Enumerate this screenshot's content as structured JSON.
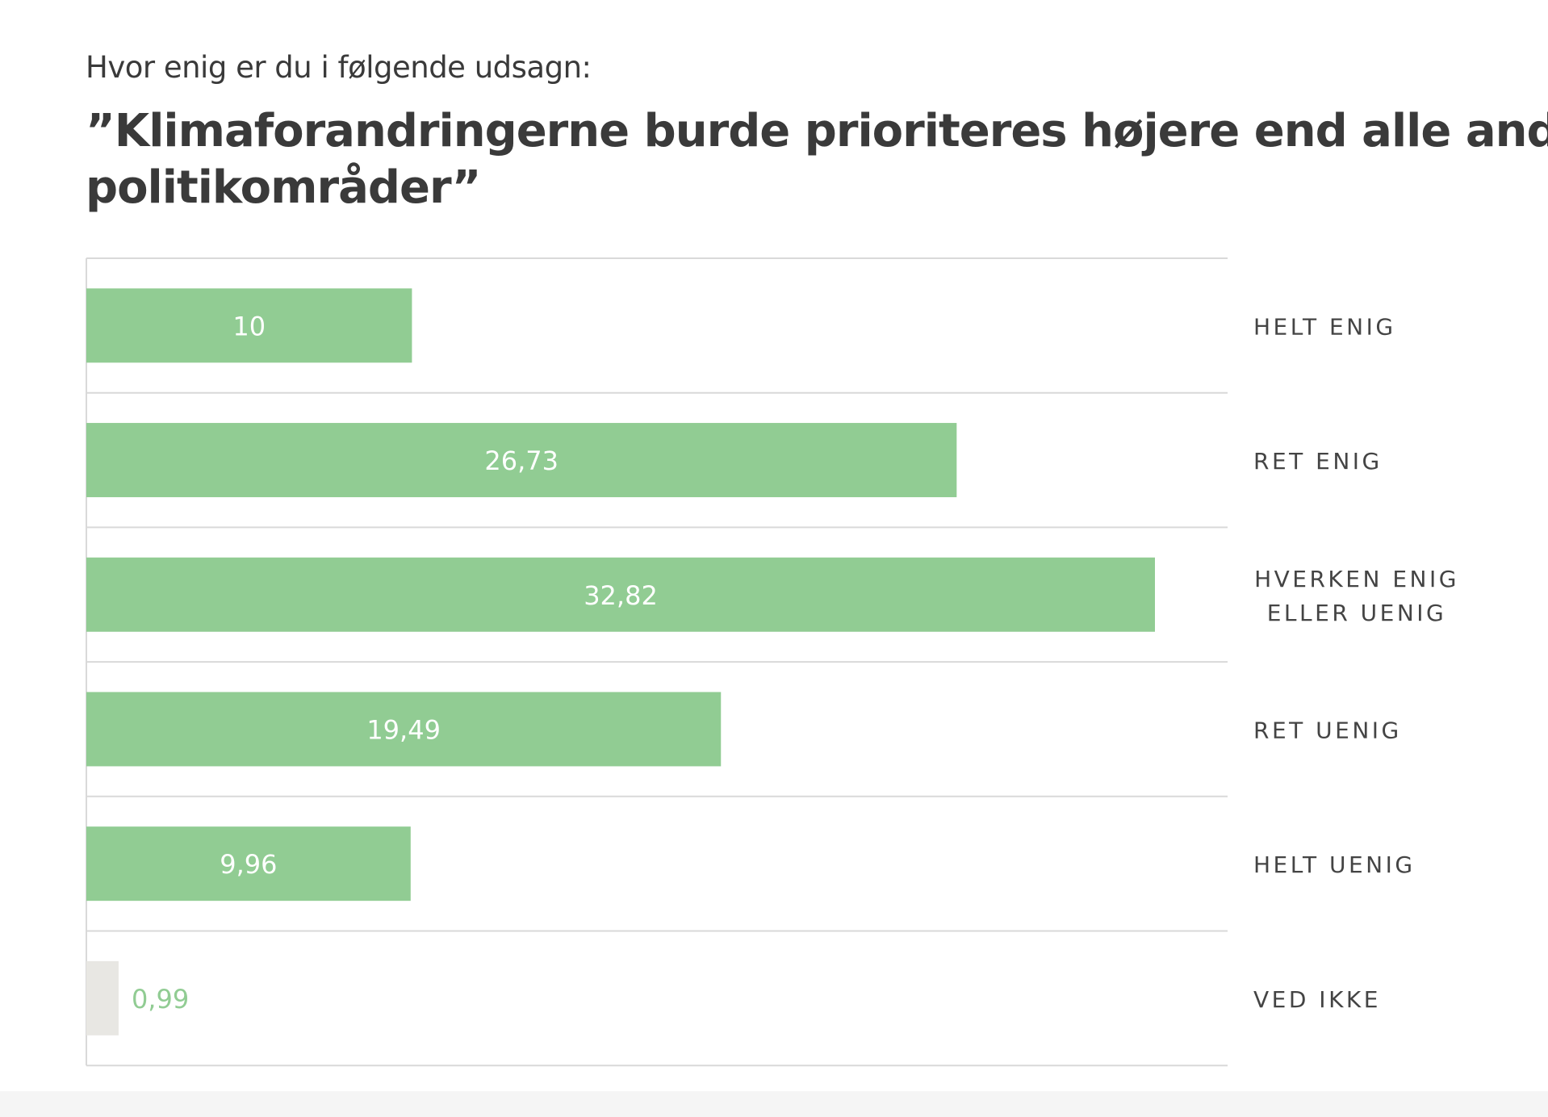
{
  "header": {
    "subtitle": "Hvor enig er du i følgende udsagn:",
    "title_line1": "”Klimaforandringerne burde prioriteres højere end alle andre",
    "title_line2": "politikområder”"
  },
  "chart_data": {
    "type": "bar",
    "orientation": "horizontal",
    "categories": [
      "HELT ENIG",
      "RET ENIG",
      "HVERKEN ENIG ELLER UENIG",
      "RET UENIG",
      "HELT UENIG",
      "VED IKKE"
    ],
    "category_lines": [
      [
        "HELT ENIG"
      ],
      [
        "RET ENIG"
      ],
      [
        "HVERKEN ENIG",
        "ELLER UENIG"
      ],
      [
        "RET UENIG"
      ],
      [
        "HELT UENIG"
      ],
      [
        "VED IKKE"
      ]
    ],
    "values": [
      10,
      26.73,
      32.82,
      19.49,
      9.96,
      0.99
    ],
    "value_labels": [
      "10",
      "26,73",
      "32,82",
      "19,49",
      "9,96",
      "0,99"
    ],
    "title": "”Klimaforandringerne burde prioriteres højere end alle andre politikområder”",
    "xlim": [
      0,
      35
    ],
    "grid": true,
    "legend": "none",
    "bar_colors": [
      "#91cc93",
      "#91cc93",
      "#91cc93",
      "#91cc93",
      "#91cc93",
      "#e8e7e3"
    ],
    "inside_label_color": "#ffffff",
    "outside_label_color": "#91cc93",
    "category_label_color": "#444444",
    "grid_color": "#d9d9d9"
  }
}
